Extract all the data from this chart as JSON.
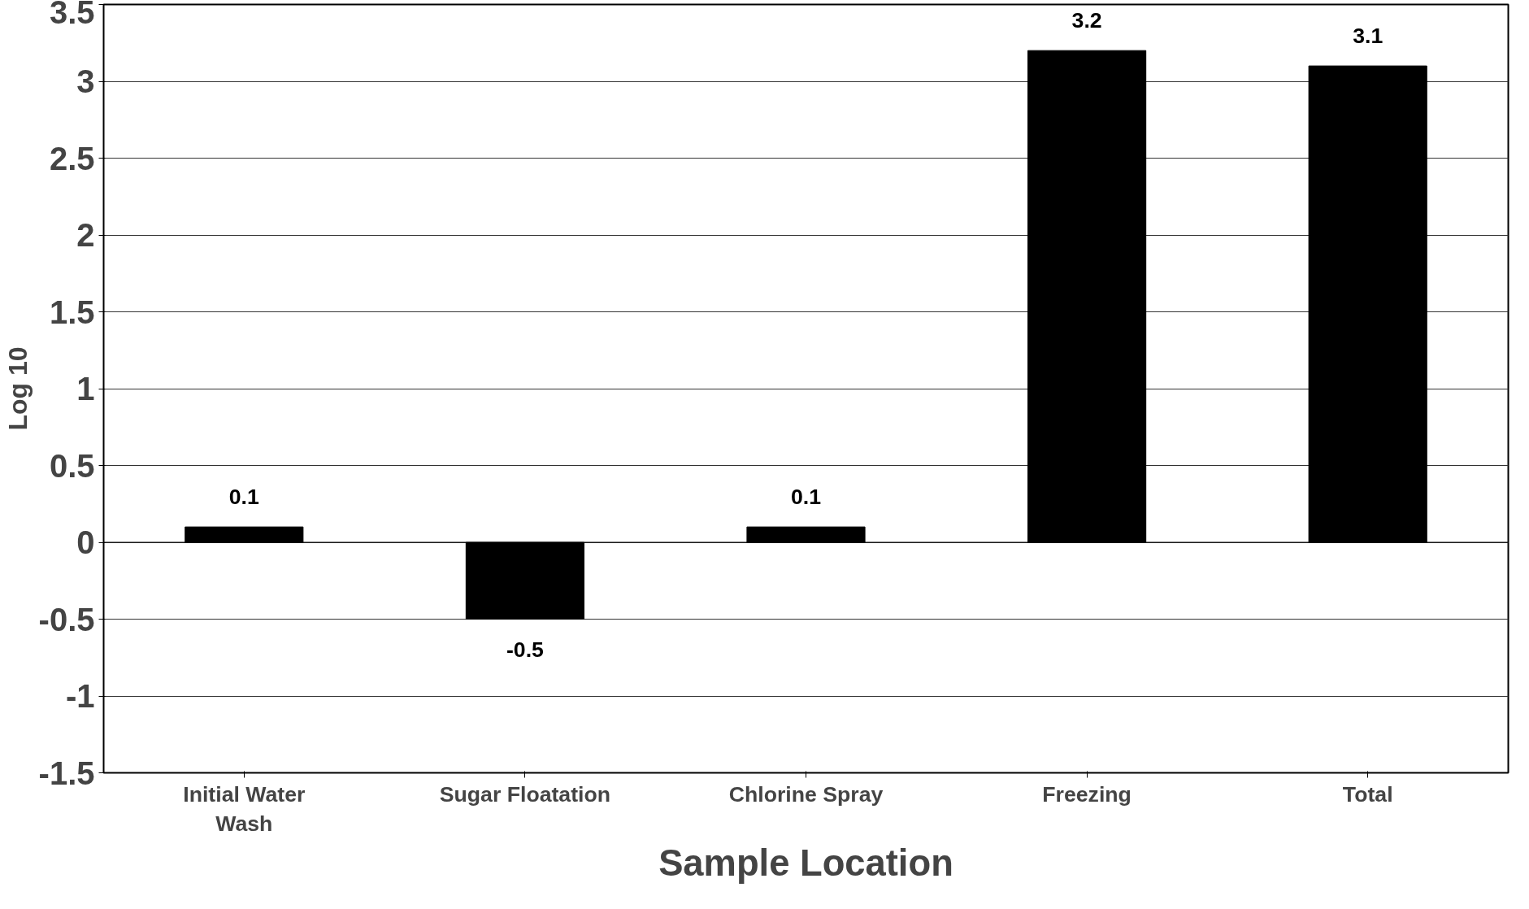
{
  "chart_data": {
    "type": "bar",
    "xlabel": "Sample Location",
    "ylabel": "Log 10",
    "categories": [
      "Initial Water Wash",
      "Sugar Floatation",
      "Chlorine Spray",
      "Freezing",
      "Total"
    ],
    "values": [
      0.1,
      -0.5,
      0.1,
      3.2,
      3.1
    ],
    "color": "#000000",
    "ylim": [
      -1.5,
      3.5
    ],
    "yticks": [
      -1.5,
      -1,
      -0.5,
      0,
      0.5,
      1,
      1.5,
      2,
      2.5,
      3,
      3.5
    ],
    "grid": "y",
    "data_labels": true
  }
}
